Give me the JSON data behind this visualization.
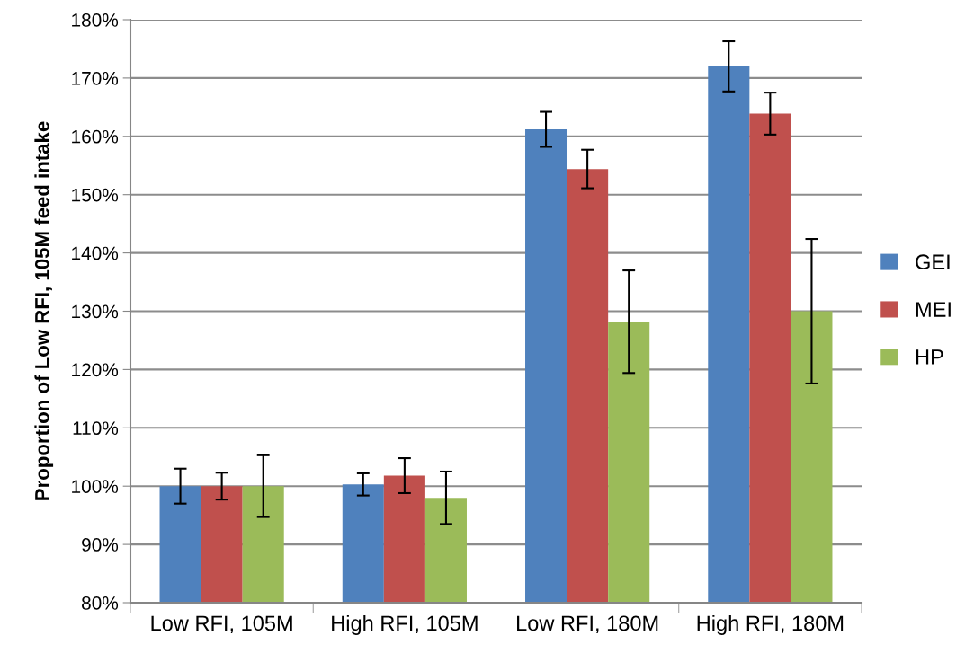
{
  "chart_data": {
    "type": "bar",
    "ylabel": "Proportion of Low RFI, 105M feed intake",
    "categories": [
      "Low RFI, 105M",
      "High RFI, 105M",
      "Low RFI, 180M",
      "High RFI, 180M"
    ],
    "series": [
      {
        "name": "GEI",
        "color": "#4f81bd",
        "values": [
          100,
          100.3,
          161.2,
          172.0
        ],
        "errors": [
          3.0,
          1.9,
          3.0,
          4.3
        ]
      },
      {
        "name": "MEI",
        "color": "#c0504d",
        "values": [
          100,
          101.8,
          154.4,
          163.9
        ],
        "errors": [
          2.3,
          3.0,
          3.3,
          3.6
        ]
      },
      {
        "name": "HP",
        "color": "#9bbb59",
        "values": [
          100,
          98.0,
          128.2,
          130.0
        ],
        "errors": [
          5.3,
          4.5,
          8.8,
          12.4
        ]
      }
    ],
    "ylim": [
      80,
      180
    ],
    "yticks": [
      {
        "value": 80,
        "label": "80%"
      },
      {
        "value": 90,
        "label": "90%"
      },
      {
        "value": 100,
        "label": "100%"
      },
      {
        "value": 110,
        "label": "110%"
      },
      {
        "value": 120,
        "label": "120%"
      },
      {
        "value": 130,
        "label": "130%"
      },
      {
        "value": 140,
        "label": "140%"
      },
      {
        "value": 150,
        "label": "150%"
      },
      {
        "value": 160,
        "label": "160%"
      },
      {
        "value": 170,
        "label": "170%"
      },
      {
        "value": 180,
        "label": "180%"
      }
    ],
    "grid": "y",
    "legend": "right"
  }
}
